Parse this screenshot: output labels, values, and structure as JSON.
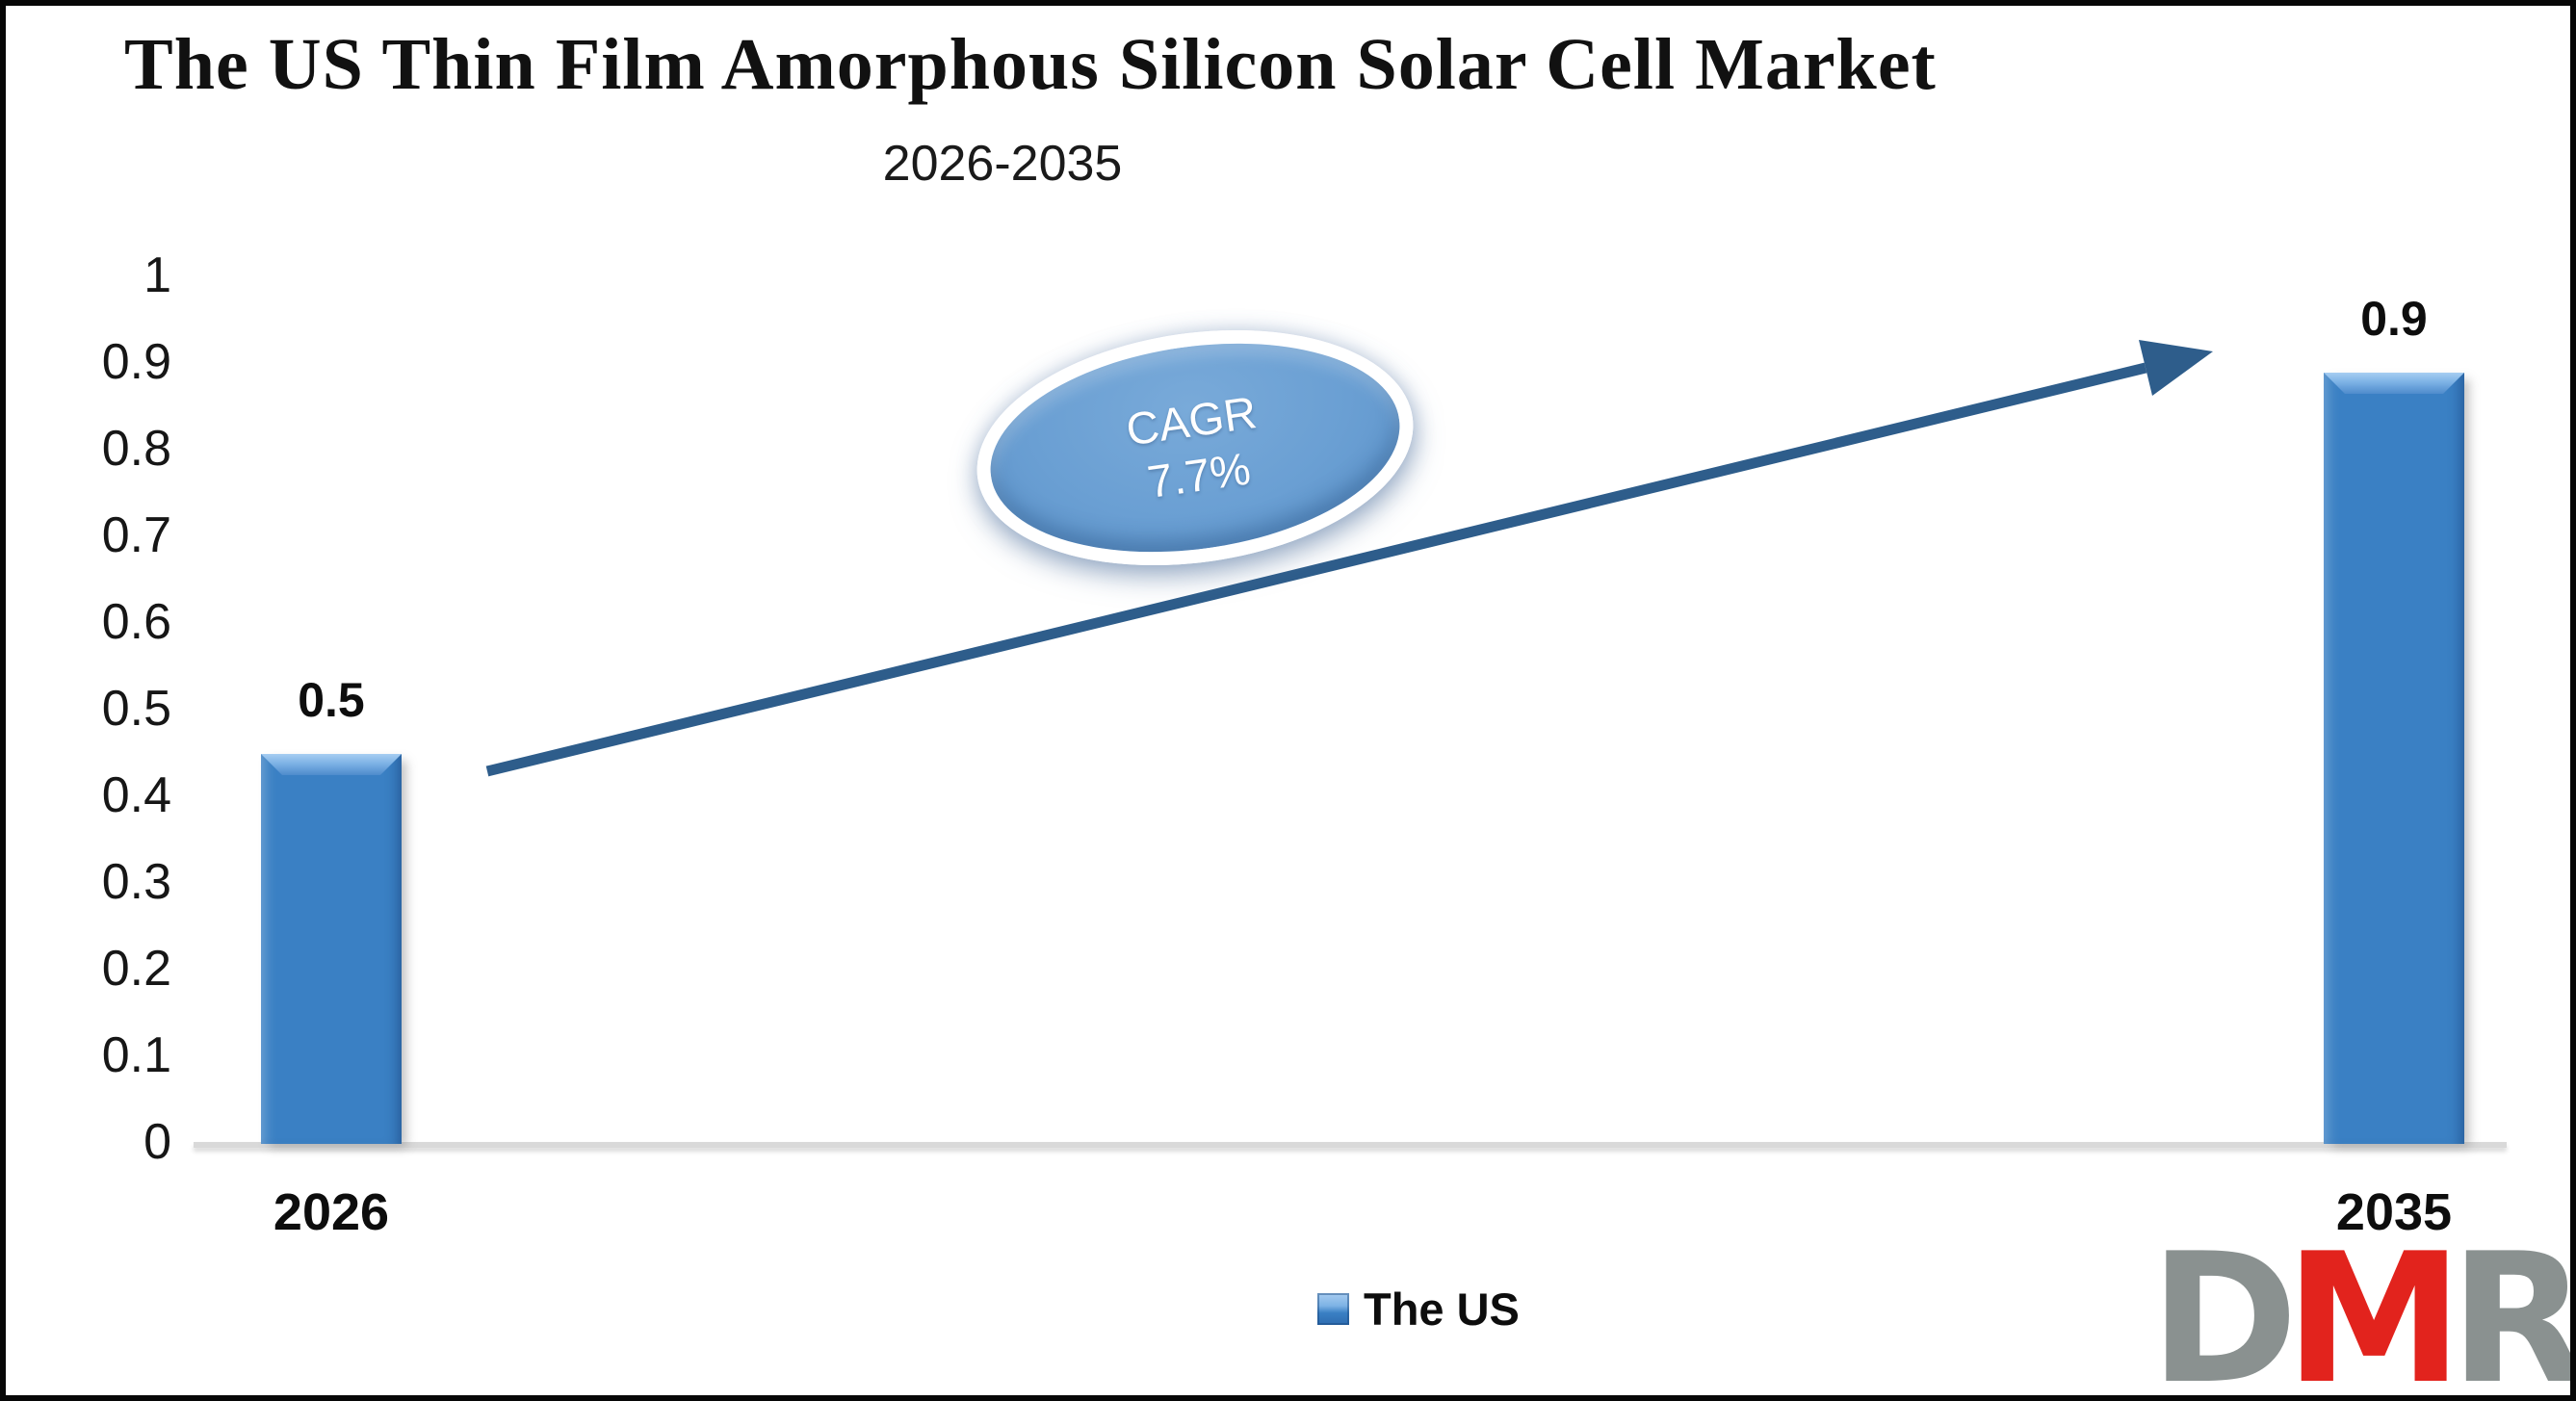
{
  "header": {
    "title": "The US Thin Film Amorphous Silicon Solar Cell Market",
    "subtitle": "2026-2035"
  },
  "chart_data": {
    "type": "bar",
    "title": "The US Thin Film Amorphous Silicon Solar Cell Market",
    "subtitle": "2026-2035",
    "categories": [
      "2026",
      "2035"
    ],
    "series": [
      {
        "name": "The US",
        "values": [
          0.5,
          0.9
        ]
      }
    ],
    "data_labels": [
      "0.5",
      "0.9"
    ],
    "drawn_values": [
      0.45,
      0.89
    ],
    "ylim": [
      0,
      1
    ],
    "yticks": [
      "1",
      "0.9",
      "0.8",
      "0.7",
      "0.6",
      "0.5",
      "0.4",
      "0.3",
      "0.2",
      "0.1",
      "0"
    ],
    "grid": false,
    "legend_position": "bottom-center",
    "annotations": [
      {
        "type": "ellipse-badge",
        "text": "CAGR 7.7%"
      },
      {
        "type": "growth-arrow",
        "from_category": "2026",
        "to_category": "2035"
      }
    ]
  },
  "badge": {
    "line1": "CAGR",
    "line2": "7.7%"
  },
  "legend": {
    "label": "The US",
    "swatch_color": "#3A80C4"
  },
  "logo": {
    "letters": [
      {
        "char": "D",
        "color": "#8A9190"
      },
      {
        "char": "M",
        "color": "#E2231D"
      },
      {
        "char": "R",
        "color": "#8A9190"
      }
    ]
  },
  "colors": {
    "bar": "#3A80C4",
    "bar_bevel_light": "#A6CDF2",
    "arrow": "#2E5D8B",
    "axis_line": "#D9D9D9",
    "badge_fill": "#6A9FD3",
    "badge_ring": "#FFFFFF",
    "frame_border": "#070707"
  }
}
